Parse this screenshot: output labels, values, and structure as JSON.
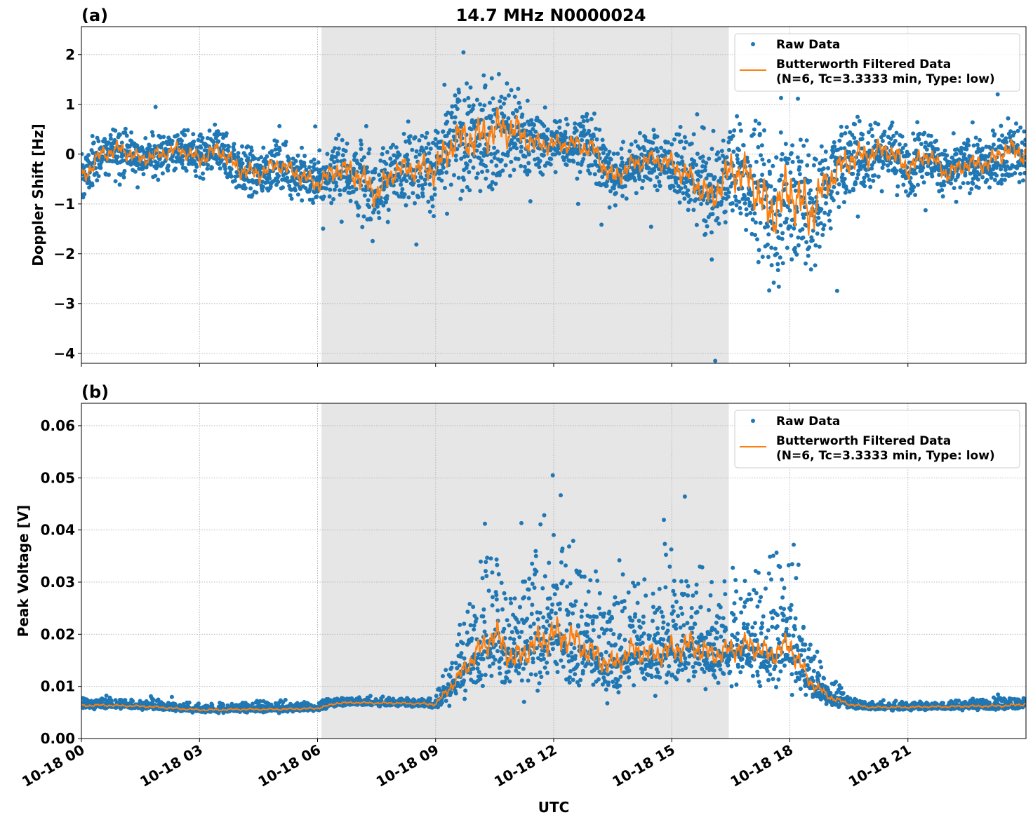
{
  "title": "14.7 MHz N0000024",
  "colors": {
    "raw": "#1f77b4",
    "filtered": "#ff7f0e",
    "shade": "#e6e6e6",
    "grid": "#b0b0b0"
  },
  "xaxis": {
    "label": "UTC",
    "range_hours": [
      0,
      24
    ],
    "ticks": [
      0,
      3,
      6,
      9,
      12,
      15,
      18,
      21
    ],
    "tick_labels": [
      "10-18 00",
      "10-18 03",
      "10-18 06",
      "10-18 09",
      "10-18 12",
      "10-18 15",
      "10-18 18",
      "10-18 21"
    ]
  },
  "legend": {
    "raw": "Raw Data",
    "filtered_line1": "Butterworth Filtered Data",
    "filtered_line2": "(N=6, Tc=3.3333 min, Type: low)",
    "placement": "upper right"
  },
  "chart_data": [
    {
      "type": "scatter+line",
      "panel_label": "(a)",
      "title": "14.7 MHz N0000024",
      "ylabel": "Doppler Shift [Hz]",
      "xlabel": "",
      "ylim": [
        -4.2,
        2.56
      ],
      "yticks": [
        2,
        1,
        0,
        -1,
        -2,
        -3,
        -4
      ],
      "ytick_labels": [
        "2",
        "1",
        "0",
        "−1",
        "−2",
        "−3",
        "−4"
      ],
      "shaded_span_hours": [
        6.1,
        16.45
      ],
      "filtered_x_hours": [
        0,
        0.5,
        1,
        1.5,
        2,
        2.5,
        3,
        3.5,
        4,
        4.5,
        5,
        5.5,
        6,
        6.5,
        7,
        7.5,
        8,
        8.5,
        9,
        9.5,
        10,
        10.5,
        11,
        11.5,
        12,
        12.5,
        13,
        13.5,
        14,
        14.5,
        15,
        15.5,
        16,
        16.5,
        17,
        17.5,
        18,
        18.5,
        19,
        19.5,
        20,
        20.5,
        21,
        21.5,
        22,
        22.5,
        23,
        23.5,
        24
      ],
      "filtered_y": [
        -0.5,
        0.0,
        0.1,
        -0.1,
        0.0,
        0.1,
        -0.1,
        0.1,
        -0.3,
        -0.4,
        -0.2,
        -0.4,
        -0.6,
        -0.3,
        -0.4,
        -0.8,
        -0.3,
        -0.3,
        -0.3,
        0.3,
        0.3,
        0.5,
        0.5,
        0.2,
        0.2,
        0.2,
        0.1,
        -0.5,
        -0.2,
        -0.1,
        -0.2,
        -0.5,
        -0.9,
        -0.3,
        -0.5,
        -1.2,
        -0.7,
        -1.2,
        -0.5,
        -0.1,
        0.0,
        0.1,
        -0.3,
        0.0,
        -0.4,
        -0.2,
        -0.2,
        0.1,
        0.0
      ],
      "raw_spread": [
        0.5,
        0.45,
        0.45,
        0.4,
        0.4,
        0.4,
        0.45,
        0.5,
        0.5,
        0.5,
        0.45,
        0.5,
        0.5,
        0.6,
        0.8,
        0.8,
        0.6,
        0.7,
        0.9,
        1.0,
        1.1,
        1.1,
        0.9,
        0.6,
        0.5,
        0.5,
        0.6,
        0.6,
        0.5,
        0.5,
        0.6,
        0.7,
        0.9,
        1.0,
        1.2,
        1.5,
        1.6,
        1.4,
        0.9,
        0.8,
        0.7,
        0.6,
        0.6,
        0.5,
        0.5,
        0.5,
        0.5,
        0.6,
        0.6
      ]
    },
    {
      "type": "scatter+line",
      "panel_label": "(b)",
      "title": "",
      "ylabel": "Peak Voltage [V]",
      "xlabel": "UTC",
      "ylim": [
        0,
        0.0643
      ],
      "yticks": [
        0,
        0.01,
        0.02,
        0.03,
        0.04,
        0.05,
        0.06
      ],
      "ytick_labels": [
        "0.00",
        "0.01",
        "0.02",
        "0.03",
        "0.04",
        "0.05",
        "0.06"
      ],
      "shaded_span_hours": [
        6.1,
        16.45
      ],
      "filtered_x_hours": [
        0,
        0.5,
        1,
        1.5,
        2,
        2.5,
        3,
        3.5,
        4,
        4.5,
        5,
        5.5,
        6,
        6.5,
        7,
        7.5,
        8,
        8.5,
        9,
        9.5,
        10,
        10.5,
        11,
        11.5,
        12,
        12.5,
        13,
        13.5,
        14,
        14.5,
        15,
        15.5,
        16,
        16.5,
        17,
        17.5,
        18,
        18.5,
        19,
        19.5,
        20,
        20.5,
        21,
        21.5,
        22,
        22.5,
        23,
        23.5,
        24
      ],
      "filtered_y": [
        0.0063,
        0.0064,
        0.0063,
        0.0062,
        0.006,
        0.0057,
        0.0055,
        0.0055,
        0.0056,
        0.0056,
        0.0056,
        0.0057,
        0.0058,
        0.0068,
        0.0069,
        0.0068,
        0.0068,
        0.0067,
        0.0066,
        0.011,
        0.016,
        0.02,
        0.015,
        0.018,
        0.02,
        0.019,
        0.016,
        0.014,
        0.017,
        0.016,
        0.017,
        0.018,
        0.016,
        0.017,
        0.018,
        0.016,
        0.018,
        0.011,
        0.008,
        0.0066,
        0.006,
        0.006,
        0.006,
        0.0061,
        0.0061,
        0.0062,
        0.0062,
        0.0063,
        0.0066
      ],
      "raw_spread": [
        0.0007,
        0.0007,
        0.0006,
        0.0006,
        0.0006,
        0.0006,
        0.0006,
        0.0006,
        0.0006,
        0.0006,
        0.0006,
        0.0006,
        0.0006,
        0.0006,
        0.0006,
        0.0006,
        0.0006,
        0.0006,
        0.001,
        0.004,
        0.007,
        0.009,
        0.008,
        0.009,
        0.01,
        0.009,
        0.008,
        0.007,
        0.007,
        0.007,
        0.008,
        0.008,
        0.007,
        0.007,
        0.007,
        0.007,
        0.008,
        0.004,
        0.002,
        0.0008,
        0.0006,
        0.0006,
        0.0006,
        0.0006,
        0.0006,
        0.0007,
        0.0007,
        0.0008,
        0.0009
      ]
    }
  ]
}
